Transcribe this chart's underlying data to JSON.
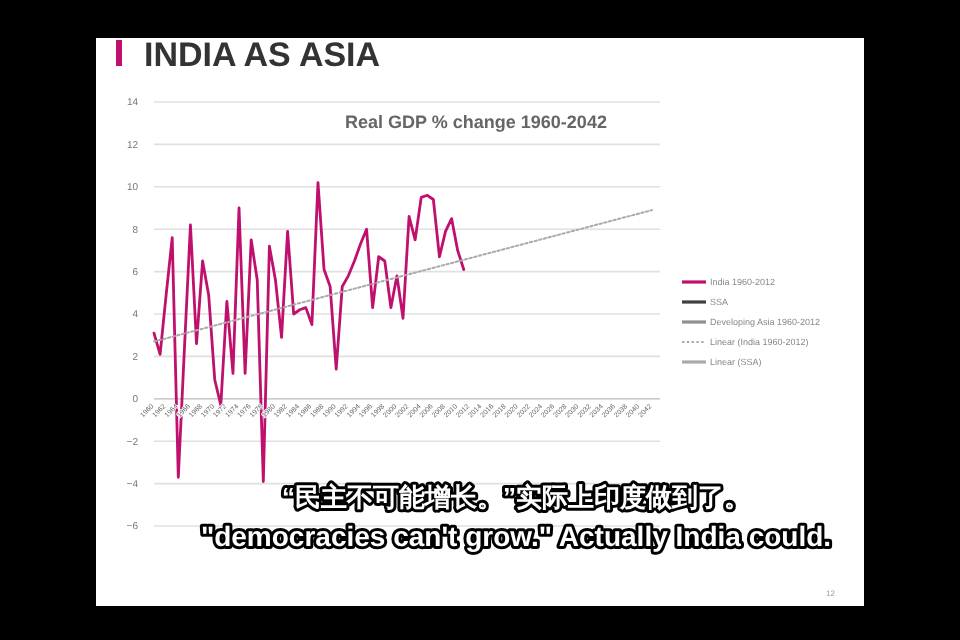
{
  "chart_data": {
    "type": "line",
    "title": "INDIA AS ASIA",
    "subtitle": "Real GDP % change 1960-2042",
    "categories": [
      "1960",
      null,
      "1962",
      null,
      "1964",
      null,
      "1966",
      null,
      "1968",
      null,
      "1970",
      null,
      "1972",
      null,
      "1974",
      null,
      "1976",
      null,
      "1978",
      null,
      "1980",
      null,
      "1982",
      null,
      "1984",
      null,
      "1986",
      null,
      "1988",
      null,
      "1990",
      null,
      "1992",
      null,
      "1994",
      null,
      "1996",
      null,
      "1998",
      null,
      "2000",
      null,
      "2002",
      null,
      "2004",
      null,
      "2006",
      null,
      "2008",
      null,
      "2010",
      null,
      "2012",
      null,
      "2014",
      null,
      "2016",
      null,
      "2018",
      null,
      "2020",
      null,
      "2022",
      null,
      "2024",
      null,
      "2026",
      null,
      "2028",
      null,
      "2030",
      null,
      "2032",
      null,
      "2034",
      null,
      "2036",
      null,
      "2038",
      null,
      "2040",
      null,
      "2042"
    ],
    "series": [
      {
        "name": "India 1960-2012",
        "color": "#c0106e",
        "values": [
          3.1,
          2.1,
          4.9,
          7.6,
          -3.7,
          2.3,
          8.2,
          2.6,
          6.5,
          4.9,
          0.9,
          -0.3,
          4.6,
          1.2,
          9.0,
          1.2,
          7.5,
          5.6,
          -3.9,
          7.2,
          5.6,
          2.9,
          7.9,
          4.0,
          4.2,
          4.3,
          3.5,
          10.2,
          6.1,
          5.3,
          1.4,
          5.3,
          5.8,
          6.5,
          7.3,
          8.0,
          4.3,
          6.7,
          6.5,
          4.3,
          5.8,
          3.8,
          8.6,
          7.5,
          9.5,
          9.6,
          9.4,
          6.7,
          7.9,
          8.5,
          7.0,
          6.1,
          null,
          null,
          null,
          null,
          null,
          null,
          null,
          null,
          null,
          null,
          null,
          null,
          null,
          null,
          null,
          null,
          null,
          null,
          null,
          null,
          null,
          null,
          null,
          null,
          null,
          null,
          null,
          null,
          null,
          null,
          null
        ]
      },
      {
        "name": "SSA",
        "color": "#404040",
        "values": [
          null,
          null,
          null,
          null,
          null,
          null,
          null,
          null,
          null,
          null,
          null,
          null,
          null,
          null,
          null,
          null,
          null,
          null,
          null,
          null,
          null,
          null,
          null,
          null,
          null,
          null,
          null,
          null,
          null,
          null,
          null,
          null,
          null,
          null,
          null,
          null,
          null,
          null,
          null,
          null,
          null,
          null,
          null,
          null,
          null,
          null,
          null,
          null,
          null,
          null,
          null,
          null,
          null,
          null,
          null,
          null,
          null,
          null,
          null,
          null,
          null,
          null,
          null,
          null,
          null,
          null,
          null,
          null,
          null,
          null,
          null,
          null,
          null,
          null,
          null,
          null,
          null,
          null,
          null,
          null,
          null,
          null,
          null
        ]
      },
      {
        "name": "Developing Asia 1960-2012",
        "color": "#909090",
        "values": [
          null,
          null,
          null,
          null,
          null,
          null,
          null,
          null,
          null,
          null,
          null,
          null,
          null,
          null,
          null,
          null,
          null,
          null,
          null,
          null,
          null,
          null,
          null,
          null,
          null,
          null,
          null,
          null,
          null,
          null,
          null,
          null,
          null,
          null,
          null,
          null,
          null,
          null,
          null,
          null,
          null,
          null,
          null,
          null,
          null,
          null,
          null,
          null,
          null,
          null,
          null,
          null,
          null,
          null,
          null,
          null,
          null,
          null,
          null,
          null,
          null,
          null,
          null,
          null,
          null,
          null,
          null,
          null,
          null,
          null,
          null,
          null,
          null,
          null,
          null,
          null,
          null,
          null,
          null,
          null,
          null,
          null,
          null
        ]
      },
      {
        "name": "Linear (India 1960-2012)",
        "color": "#aaaaaa",
        "line_style": "dotted",
        "values": [
          2.7,
          null,
          null,
          null,
          null,
          null,
          null,
          null,
          null,
          null,
          null,
          null,
          null,
          null,
          null,
          null,
          null,
          null,
          null,
          null,
          null,
          null,
          null,
          null,
          null,
          null,
          null,
          null,
          null,
          null,
          null,
          null,
          null,
          null,
          null,
          null,
          null,
          null,
          null,
          null,
          null,
          null,
          null,
          null,
          null,
          null,
          null,
          null,
          null,
          null,
          null,
          null,
          null,
          null,
          null,
          null,
          null,
          null,
          null,
          null,
          null,
          null,
          null,
          null,
          null,
          null,
          null,
          null,
          null,
          null,
          null,
          null,
          null,
          null,
          null,
          null,
          null,
          null,
          null,
          null,
          null,
          null,
          8.9
        ]
      },
      {
        "name": "Linear (SSA)",
        "color": "#aaaaaa",
        "values": [
          null,
          null,
          null,
          null,
          null,
          null,
          null,
          null,
          null,
          null,
          null,
          null,
          null,
          null,
          null,
          null,
          null,
          null,
          null,
          null,
          null,
          null,
          null,
          null,
          null,
          null,
          null,
          null,
          null,
          null,
          null,
          null,
          null,
          null,
          null,
          null,
          null,
          null,
          null,
          null,
          null,
          null,
          null,
          null,
          null,
          null,
          null,
          null,
          null,
          null,
          null,
          null,
          null,
          null,
          null,
          null,
          null,
          null,
          null,
          null,
          null,
          null,
          null,
          null,
          null,
          null,
          null,
          null,
          null,
          null,
          null,
          null,
          null,
          null,
          null,
          null,
          null,
          null,
          null,
          null,
          null,
          null,
          null
        ]
      }
    ],
    "ylim": [
      -6,
      14
    ],
    "yticks": [
      -6,
      -4,
      -2,
      0,
      2,
      4,
      6,
      8,
      10,
      12,
      14
    ],
    "grid": "y",
    "legend": "right",
    "annotations": [
      "“民主不可能增长。”实际上印度做到了。",
      "\"democracies can't grow.\" Actually India could.",
      "12"
    ]
  }
}
